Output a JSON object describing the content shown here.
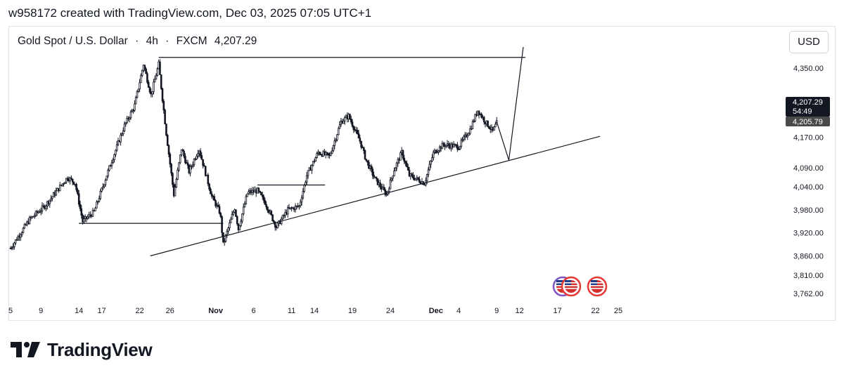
{
  "header": {
    "text": "w958172 created with TradingView.com, Dec 03, 2025 07:05 UTC+1"
  },
  "symbol": {
    "name": "Gold Spot / U.S. Dollar",
    "sep1": "·",
    "interval": "4h",
    "sep2": "·",
    "exchange": "FXCM",
    "price": "4,207.29"
  },
  "currency_button": "USD",
  "price_scale": {
    "last_price": "4,207.29",
    "countdown": "54:49",
    "second_price": "4,205.79",
    "last_price_bg": "#131722",
    "second_price_bg": "#4a4a4a"
  },
  "brand": {
    "logo_text": "TradingView"
  },
  "colors": {
    "candle": "#131722",
    "line": "#131722",
    "event_icon_purple": "#7e57c2",
    "event_icon_red": "#e53935"
  },
  "chart_data": {
    "type": "candlestick",
    "ylim": [
      3740,
      4410
    ],
    "ytick_labels": [
      "4,350.00",
      "4,170.00",
      "4,090.00",
      "4,040.00",
      "3,980.00",
      "3,920.00",
      "3,860.00",
      "3,810.00",
      "3,762.00"
    ],
    "ytick_values": [
      4350,
      4170,
      4090,
      4040,
      3980,
      3920,
      3860,
      3810,
      3762
    ],
    "xtick_labels": [
      "5",
      "9",
      "14",
      "17",
      "22",
      "26",
      "Nov",
      "6",
      "11",
      "14",
      "19",
      "24",
      "Dec",
      "4",
      "9",
      "12",
      "17",
      "22",
      "25"
    ],
    "xtick_days": [
      5,
      9,
      14,
      17,
      22,
      26,
      32,
      37,
      42,
      45,
      50,
      55,
      61,
      64,
      69,
      72,
      77,
      82,
      85
    ],
    "bold_xticks": [
      "Nov",
      "Dec"
    ],
    "ohlc_path": [
      [
        0,
        3880
      ],
      [
        2.5,
        3955
      ],
      [
        4.5,
        3990
      ],
      [
        7.5,
        4065
      ],
      [
        8.5,
        4050
      ],
      [
        9.5,
        3950
      ],
      [
        11,
        3975
      ],
      [
        13,
        4090
      ],
      [
        15,
        4200
      ],
      [
        16.3,
        4250
      ],
      [
        17.5,
        4360
      ],
      [
        18.5,
        4280
      ],
      [
        19.5,
        4360
      ],
      [
        20.5,
        4180
      ],
      [
        21.5,
        4020
      ],
      [
        22.5,
        4140
      ],
      [
        23.5,
        4080
      ],
      [
        24.8,
        4140
      ],
      [
        26.5,
        4015
      ],
      [
        27.6,
        3972
      ],
      [
        28,
        3890
      ],
      [
        29.5,
        3985
      ],
      [
        30,
        3930
      ],
      [
        31.2,
        4025
      ],
      [
        32.5,
        4030
      ],
      [
        33.5,
        4000
      ],
      [
        35,
        3935
      ],
      [
        36.5,
        3980
      ],
      [
        38,
        3990
      ],
      [
        39,
        4070
      ],
      [
        40.5,
        4130
      ],
      [
        42,
        4120
      ],
      [
        43.5,
        4210
      ],
      [
        44.5,
        4225
      ],
      [
        46,
        4160
      ],
      [
        46.8,
        4110
      ],
      [
        48,
        4060
      ],
      [
        49.5,
        4020
      ],
      [
        50.5,
        4085
      ],
      [
        51.5,
        4130
      ],
      [
        52.5,
        4070
      ],
      [
        54.5,
        4050
      ],
      [
        55.7,
        4130
      ],
      [
        57,
        4150
      ],
      [
        59,
        4145
      ],
      [
        60.5,
        4190
      ],
      [
        61.5,
        4240
      ],
      [
        62.5,
        4210
      ],
      [
        63.5,
        4185
      ],
      [
        64,
        4207
      ]
    ],
    "trendline": {
      "from": [
        18.4,
        3860
      ],
      "to": [
        77.6,
        4172
      ]
    },
    "resistance_line": {
      "from": [
        19.5,
        4378
      ],
      "to": [
        67.8,
        4378
      ],
      "level": 4378
    },
    "support_line": {
      "from": [
        9,
        3945
      ],
      "to": [
        28,
        3945
      ],
      "level": 3945
    },
    "mid_line": {
      "from": [
        32.5,
        4045
      ],
      "to": [
        41.4,
        4045
      ],
      "level": 4045
    },
    "projection_path": [
      [
        64,
        4210
      ],
      [
        65.6,
        4110
      ],
      [
        67.5,
        4405
      ]
    ],
    "event_icons_day": [
      62.5,
      64.5,
      66.5
    ]
  }
}
